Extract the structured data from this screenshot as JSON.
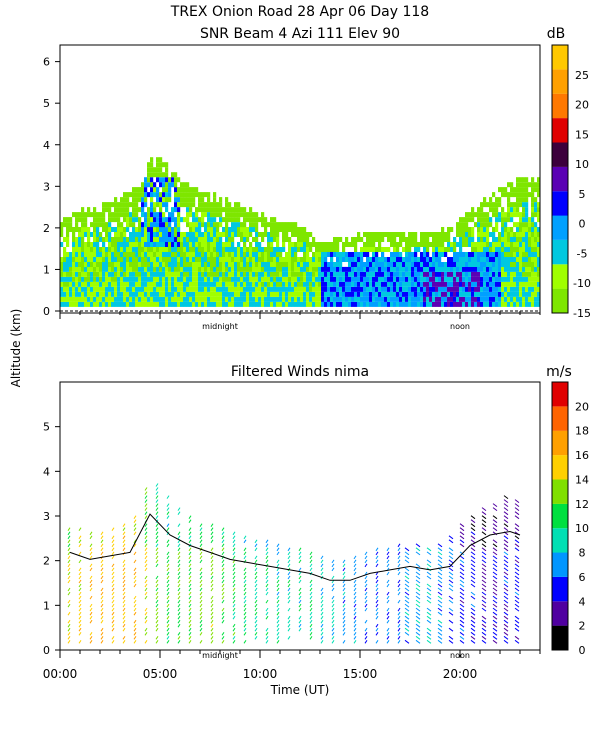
{
  "title_line1": "TREX Onion Road  28 Apr 06 Day 118",
  "title_line2": "SNR Beam 4 Azi 111 Elev 90",
  "ylabel": "Altitude (km)",
  "colors": {
    "snr_scale": [
      "#7ee600",
      "#a0ff00",
      "#00c8e0",
      "#00a0ff",
      "#0000ff",
      "#5a00b4",
      "#3c003c",
      "#e00000",
      "#ff7800",
      "#ffa000",
      "#ffc800"
    ],
    "wind_scale": [
      "#000000",
      "#5000a0",
      "#0000ff",
      "#0096ff",
      "#00e0b4",
      "#00e040",
      "#80e000",
      "#ffd000",
      "#ffa000",
      "#ff6400",
      "#e00000"
    ],
    "contour": "#000000"
  },
  "chart_data": [
    {
      "type": "heatmap",
      "name": "snr",
      "title": "SNR Beam 4 Azi 111 Elev 90",
      "ylabel": "Altitude (km)",
      "ylim": [
        0,
        6.4
      ],
      "yticks": [
        "0",
        "1",
        "2",
        "3",
        "4",
        "5",
        "6"
      ],
      "x_markers": [
        "midnight",
        "noon"
      ],
      "colorbar": {
        "unit": "dB",
        "min": -15,
        "max": 30,
        "ticks": [
          "25",
          "20",
          "15",
          "10",
          "5",
          "0",
          "-5",
          "-10",
          "-15"
        ]
      },
      "altitude_top_km": [
        {
          "t": 0.0,
          "top": 2.1
        },
        {
          "t": 1.0,
          "top": 2.4
        },
        {
          "t": 2.0,
          "top": 2.5
        },
        {
          "t": 3.0,
          "top": 2.7
        },
        {
          "t": 4.0,
          "top": 3.0
        },
        {
          "t": 4.5,
          "top": 3.7
        },
        {
          "t": 5.0,
          "top": 3.6
        },
        {
          "t": 6.0,
          "top": 3.1
        },
        {
          "t": 7.0,
          "top": 2.9
        },
        {
          "t": 8.0,
          "top": 2.7
        },
        {
          "t": 9.0,
          "top": 2.5
        },
        {
          "t": 10.0,
          "top": 2.3
        },
        {
          "t": 11.0,
          "top": 2.1
        },
        {
          "t": 12.0,
          "top": 2.0
        },
        {
          "t": 13.0,
          "top": 1.6
        },
        {
          "t": 14.0,
          "top": 1.7
        },
        {
          "t": 15.0,
          "top": 1.8
        },
        {
          "t": 16.0,
          "top": 1.9
        },
        {
          "t": 17.0,
          "top": 1.9
        },
        {
          "t": 18.0,
          "top": 1.8
        },
        {
          "t": 19.0,
          "top": 1.9
        },
        {
          "t": 20.0,
          "top": 2.2
        },
        {
          "t": 21.0,
          "top": 2.6
        },
        {
          "t": 22.0,
          "top": 2.9
        },
        {
          "t": 23.0,
          "top": 3.2
        }
      ]
    },
    {
      "type": "scatter",
      "name": "winds",
      "title": "Filtered Winds nima",
      "xlabel": "Time (UT)",
      "ylabel": "Altitude (km)",
      "ylim": [
        0,
        6
      ],
      "xlim": [
        0,
        24
      ],
      "yticks": [
        "0",
        "1",
        "2",
        "3",
        "4",
        "5"
      ],
      "xticks": [
        "00:00",
        "05:00",
        "10:00",
        "15:00",
        "20:00"
      ],
      "x_markers": [
        "midnight",
        "noon"
      ],
      "colorbar": {
        "unit": "m/s",
        "min": 0,
        "max": 22,
        "ticks": [
          "20",
          "18",
          "16",
          "14",
          "12",
          "10",
          "8",
          "6",
          "4",
          "2",
          "0"
        ]
      },
      "speed_by_time": [
        {
          "t": 0.5,
          "speed": 13
        },
        {
          "t": 1.5,
          "speed": 15
        },
        {
          "t": 2.5,
          "speed": 15
        },
        {
          "t": 3.5,
          "speed": 16
        },
        {
          "t": 4.5,
          "speed": 12
        },
        {
          "t": 5.5,
          "speed": 10
        },
        {
          "t": 6.5,
          "speed": 11
        },
        {
          "t": 7.5,
          "speed": 12
        },
        {
          "t": 8.5,
          "speed": 10
        },
        {
          "t": 9.5,
          "speed": 9
        },
        {
          "t": 10.5,
          "speed": 8
        },
        {
          "t": 11.5,
          "speed": 8
        },
        {
          "t": 12.5,
          "speed": 9
        },
        {
          "t": 13.5,
          "speed": 7
        },
        {
          "t": 14.5,
          "speed": 6
        },
        {
          "t": 15.5,
          "speed": 5
        },
        {
          "t": 16.5,
          "speed": 5
        },
        {
          "t": 17.5,
          "speed": 6
        },
        {
          "t": 18.5,
          "speed": 7
        },
        {
          "t": 19.5,
          "speed": 5
        },
        {
          "t": 20.5,
          "speed": 4
        },
        {
          "t": 21.5,
          "speed": 3
        },
        {
          "t": 22.5,
          "speed": 4
        },
        {
          "t": 23.0,
          "speed": 4
        }
      ],
      "top_km_by_time": [
        {
          "t": 0.5,
          "top": 2.8
        },
        {
          "t": 1.5,
          "top": 2.6
        },
        {
          "t": 2.5,
          "top": 2.7
        },
        {
          "t": 3.5,
          "top": 2.8
        },
        {
          "t": 4.5,
          "top": 3.9
        },
        {
          "t": 5.5,
          "top": 3.3
        },
        {
          "t": 6.5,
          "top": 3.0
        },
        {
          "t": 7.5,
          "top": 2.8
        },
        {
          "t": 8.5,
          "top": 2.6
        },
        {
          "t": 9.5,
          "top": 2.5
        },
        {
          "t": 10.5,
          "top": 2.4
        },
        {
          "t": 11.5,
          "top": 2.3
        },
        {
          "t": 12.5,
          "top": 2.2
        },
        {
          "t": 13.5,
          "top": 2.0
        },
        {
          "t": 14.5,
          "top": 2.0
        },
        {
          "t": 15.5,
          "top": 2.2
        },
        {
          "t": 16.5,
          "top": 2.3
        },
        {
          "t": 17.5,
          "top": 2.4
        },
        {
          "t": 18.5,
          "top": 2.3
        },
        {
          "t": 19.5,
          "top": 2.4
        },
        {
          "t": 20.5,
          "top": 3.0
        },
        {
          "t": 21.5,
          "top": 3.3
        },
        {
          "t": 22.5,
          "top": 3.4
        },
        {
          "t": 23.0,
          "top": 3.3
        }
      ]
    }
  ]
}
